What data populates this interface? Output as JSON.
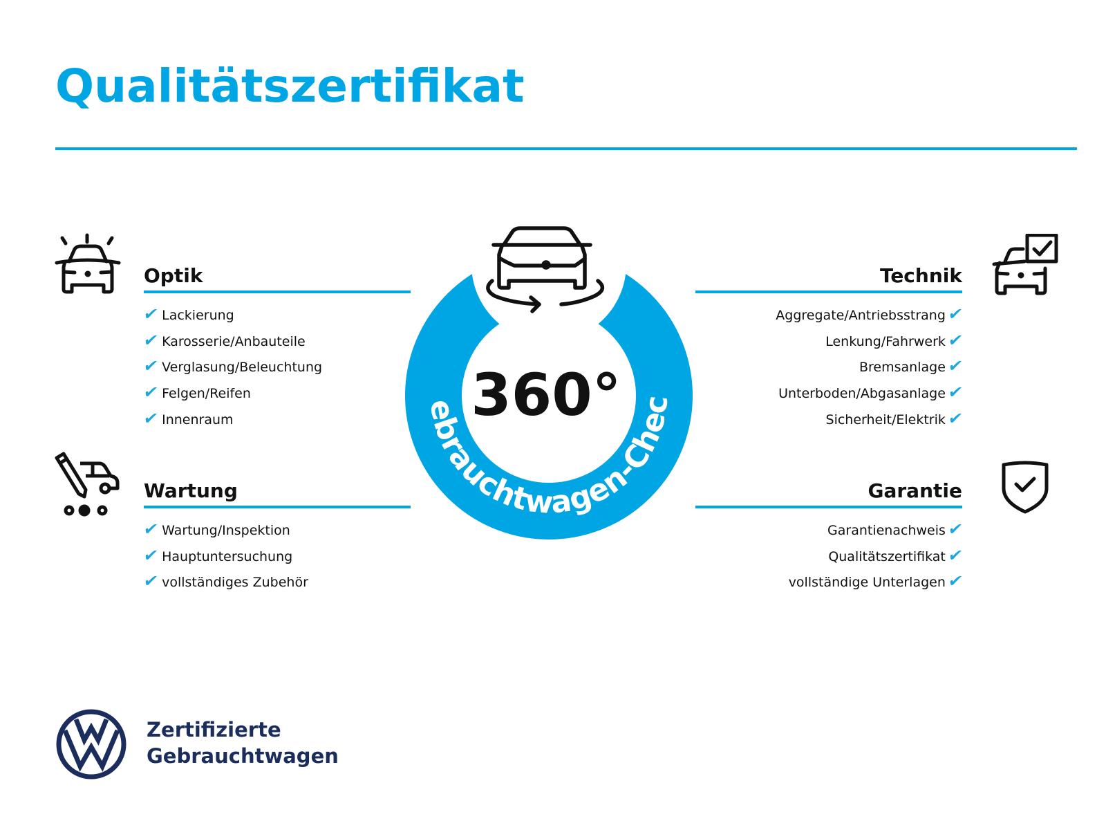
{
  "title": "Qualitätszertifikat",
  "colors": {
    "accent": "#00a5e3",
    "navy": "#1b2d5c",
    "text": "#111111"
  },
  "center": {
    "big_text": "360°",
    "ring_text": "Gebrauchtwagen-Check",
    "icon": "car-rotate-icon"
  },
  "sections": {
    "optik": {
      "heading": "Optik",
      "icon": "car-shine-icon",
      "items": [
        "Lackierung",
        "Karosserie/Anbauteile",
        "Verglasung/Beleuchtung",
        "Felgen/Reifen",
        "Innenraum"
      ]
    },
    "wartung": {
      "heading": "Wartung",
      "icon": "car-service-icon",
      "items": [
        "Wartung/Inspektion",
        "Hauptuntersuchung",
        "vollständiges Zubehör"
      ]
    },
    "technik": {
      "heading": "Technik",
      "icon": "car-check-icon",
      "items": [
        "Aggregate/Antriebsstrang",
        "Lenkung/Fahrwerk",
        "Bremsanlage",
        "Unterboden/Abgasanlage",
        "Sicherheit/Elektrik"
      ]
    },
    "garantie": {
      "heading": "Garantie",
      "icon": "shield-check-icon",
      "items": [
        "Garantienachweis",
        "Qualitätszertifikat",
        "vollständige Unterlagen"
      ]
    }
  },
  "check_glyph": "✔",
  "footer": {
    "line1": "Zertifizierte",
    "line2": "Gebrauchtwagen",
    "logo": "vw-logo"
  }
}
